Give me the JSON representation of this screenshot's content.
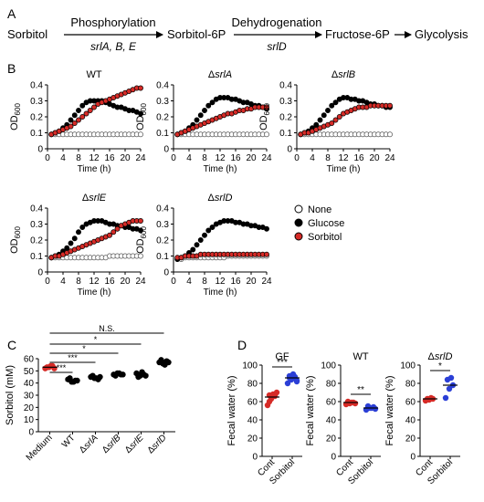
{
  "colors": {
    "none": "#ffffff",
    "glucose": "#000000",
    "sorbitol": "#d62b27",
    "sorbitol_blue": "#2b3fd6"
  },
  "panel_a": {
    "label": "A",
    "nodes": [
      "Sorbitol",
      "Sorbitol-6P",
      "Fructose-6P",
      "Glycolysis"
    ],
    "steps": [
      {
        "above": "Phosphorylation",
        "below": "srlA, B, E"
      },
      {
        "above": "Dehydrogenation",
        "below": "srlD"
      }
    ]
  },
  "panel_b": {
    "label": "B",
    "legend": [
      "None",
      "Glucose",
      "Sorbitol"
    ],
    "chart_data": [
      {
        "type": "line",
        "title": "WT",
        "xlabel": "Time (h)",
        "ylabel": "OD600",
        "xlim": [
          0,
          24
        ],
        "ylim": [
          0,
          0.4
        ],
        "xticks": [
          "0",
          "4",
          "8",
          "12",
          "16",
          "20",
          "24"
        ],
        "yticks": [
          "0",
          "0.1",
          "0.2",
          "0.3",
          "0.4"
        ],
        "x": [
          1,
          2,
          3,
          4,
          5,
          6,
          7,
          8,
          9,
          10,
          11,
          12,
          13,
          14,
          15,
          16,
          17,
          18,
          19,
          20,
          21,
          22,
          23,
          24
        ],
        "series": [
          {
            "name": "None",
            "values": [
              0.09,
              0.09,
              0.09,
              0.09,
              0.09,
              0.09,
              0.09,
              0.09,
              0.09,
              0.09,
              0.09,
              0.09,
              0.09,
              0.09,
              0.09,
              0.09,
              0.09,
              0.09,
              0.09,
              0.09,
              0.09,
              0.09,
              0.09,
              0.09
            ]
          },
          {
            "name": "Glucose",
            "values": [
              0.09,
              0.1,
              0.11,
              0.13,
              0.15,
              0.18,
              0.21,
              0.24,
              0.27,
              0.29,
              0.3,
              0.3,
              0.3,
              0.3,
              0.29,
              0.28,
              0.27,
              0.26,
              0.26,
              0.25,
              0.24,
              0.24,
              0.23,
              0.22
            ]
          },
          {
            "name": "Sorbitol",
            "values": [
              0.09,
              0.1,
              0.11,
              0.12,
              0.13,
              0.14,
              0.16,
              0.18,
              0.2,
              0.22,
              0.24,
              0.26,
              0.28,
              0.29,
              0.3,
              0.31,
              0.32,
              0.33,
              0.34,
              0.35,
              0.36,
              0.37,
              0.38,
              0.38
            ]
          }
        ]
      },
      {
        "type": "line",
        "title": "ΔsrlA",
        "xlabel": "Time (h)",
        "ylabel": "OD600",
        "xlim": [
          0,
          24
        ],
        "ylim": [
          0,
          0.4
        ],
        "xticks": [
          "0",
          "4",
          "8",
          "12",
          "16",
          "20",
          "24"
        ],
        "yticks": [
          "0",
          "0.1",
          "0.2",
          "0.3",
          "0.4"
        ],
        "x": [
          1,
          2,
          3,
          4,
          5,
          6,
          7,
          8,
          9,
          10,
          11,
          12,
          13,
          14,
          15,
          16,
          17,
          18,
          19,
          20,
          21,
          22,
          23,
          24
        ],
        "series": [
          {
            "name": "None",
            "values": [
              0.09,
              0.09,
              0.09,
              0.09,
              0.09,
              0.09,
              0.09,
              0.09,
              0.09,
              0.09,
              0.09,
              0.09,
              0.09,
              0.09,
              0.09,
              0.09,
              0.09,
              0.09,
              0.09,
              0.09,
              0.09,
              0.09,
              0.09,
              0.09
            ]
          },
          {
            "name": "Glucose",
            "values": [
              0.09,
              0.1,
              0.11,
              0.13,
              0.15,
              0.18,
              0.21,
              0.24,
              0.27,
              0.29,
              0.31,
              0.32,
              0.32,
              0.32,
              0.31,
              0.31,
              0.3,
              0.29,
              0.29,
              0.28,
              0.27,
              0.27,
              0.26,
              0.25
            ]
          },
          {
            "name": "Sorbitol",
            "values": [
              0.09,
              0.1,
              0.11,
              0.12,
              0.13,
              0.14,
              0.15,
              0.16,
              0.17,
              0.18,
              0.19,
              0.2,
              0.21,
              0.22,
              0.22,
              0.23,
              0.24,
              0.24,
              0.25,
              0.25,
              0.26,
              0.26,
              0.26,
              0.26
            ]
          }
        ]
      },
      {
        "type": "line",
        "title": "ΔsrlB",
        "xlabel": "Time (h)",
        "ylabel": "OD600",
        "xlim": [
          0,
          24
        ],
        "ylim": [
          0,
          0.4
        ],
        "xticks": [
          "0",
          "4",
          "8",
          "12",
          "16",
          "20",
          "24"
        ],
        "yticks": [
          "0",
          "0.1",
          "0.2",
          "0.3",
          "0.4"
        ],
        "x": [
          1,
          2,
          3,
          4,
          5,
          6,
          7,
          8,
          9,
          10,
          11,
          12,
          13,
          14,
          15,
          16,
          17,
          18,
          19,
          20,
          21,
          22,
          23,
          24
        ],
        "series": [
          {
            "name": "None",
            "values": [
              0.09,
              0.09,
              0.09,
              0.09,
              0.09,
              0.09,
              0.09,
              0.09,
              0.09,
              0.09,
              0.09,
              0.09,
              0.09,
              0.09,
              0.09,
              0.09,
              0.09,
              0.09,
              0.09,
              0.09,
              0.09,
              0.09,
              0.09,
              0.09
            ]
          },
          {
            "name": "Glucose",
            "values": [
              0.09,
              0.1,
              0.11,
              0.13,
              0.15,
              0.18,
              0.21,
              0.24,
              0.27,
              0.29,
              0.31,
              0.32,
              0.32,
              0.31,
              0.31,
              0.3,
              0.3,
              0.29,
              0.28,
              0.28,
              0.27,
              0.27,
              0.26,
              0.26
            ]
          },
          {
            "name": "Sorbitol",
            "values": [
              0.09,
              0.1,
              0.1,
              0.11,
              0.12,
              0.13,
              0.14,
              0.15,
              0.16,
              0.18,
              0.2,
              0.22,
              0.23,
              0.24,
              0.25,
              0.26,
              0.26,
              0.26,
              0.27,
              0.27,
              0.27,
              0.27,
              0.27,
              0.27
            ]
          }
        ]
      },
      {
        "type": "line",
        "title": "ΔsrlE",
        "xlabel": "Time (h)",
        "ylabel": "OD600",
        "xlim": [
          0,
          24
        ],
        "ylim": [
          0,
          0.4
        ],
        "xticks": [
          "0",
          "4",
          "8",
          "12",
          "16",
          "20",
          "24"
        ],
        "yticks": [
          "0",
          "0.1",
          "0.2",
          "0.3",
          "0.4"
        ],
        "x": [
          1,
          2,
          3,
          4,
          5,
          6,
          7,
          8,
          9,
          10,
          11,
          12,
          13,
          14,
          15,
          16,
          17,
          18,
          19,
          20,
          21,
          22,
          23,
          24
        ],
        "series": [
          {
            "name": "None",
            "values": [
              0.09,
              0.09,
              0.09,
              0.09,
              0.09,
              0.09,
              0.09,
              0.09,
              0.09,
              0.09,
              0.09,
              0.09,
              0.09,
              0.09,
              0.09,
              0.1,
              0.1,
              0.1,
              0.1,
              0.1,
              0.1,
              0.1,
              0.1,
              0.1
            ]
          },
          {
            "name": "Glucose",
            "values": [
              0.09,
              0.1,
              0.11,
              0.13,
              0.15,
              0.18,
              0.21,
              0.25,
              0.28,
              0.3,
              0.31,
              0.32,
              0.32,
              0.32,
              0.31,
              0.3,
              0.3,
              0.29,
              0.29,
              0.28,
              0.28,
              0.27,
              0.27,
              0.26
            ]
          },
          {
            "name": "Sorbitol",
            "values": [
              0.09,
              0.1,
              0.1,
              0.11,
              0.12,
              0.13,
              0.14,
              0.15,
              0.16,
              0.17,
              0.18,
              0.19,
              0.2,
              0.21,
              0.22,
              0.23,
              0.25,
              0.27,
              0.29,
              0.3,
              0.31,
              0.32,
              0.32,
              0.32
            ]
          }
        ]
      },
      {
        "type": "line",
        "title": "ΔsrlD",
        "xlabel": "Time (h)",
        "ylabel": "OD600",
        "xlim": [
          0,
          24
        ],
        "ylim": [
          0,
          0.4
        ],
        "xticks": [
          "0",
          "4",
          "8",
          "12",
          "16",
          "20",
          "24"
        ],
        "yticks": [
          "0",
          "0.1",
          "0.2",
          "0.3",
          "0.4"
        ],
        "x": [
          1,
          2,
          3,
          4,
          5,
          6,
          7,
          8,
          9,
          10,
          11,
          12,
          13,
          14,
          15,
          16,
          17,
          18,
          19,
          20,
          21,
          22,
          23,
          24
        ],
        "series": [
          {
            "name": "None",
            "values": [
              0.08,
              0.08,
              0.09,
              0.09,
              0.09,
              0.09,
              0.09,
              0.09,
              0.09,
              0.09,
              0.09,
              0.09,
              0.09,
              0.1,
              0.1,
              0.1,
              0.1,
              0.1,
              0.1,
              0.1,
              0.1,
              0.1,
              0.1,
              0.1
            ]
          },
          {
            "name": "Glucose",
            "values": [
              0.08,
              0.09,
              0.1,
              0.12,
              0.14,
              0.17,
              0.2,
              0.23,
              0.26,
              0.28,
              0.3,
              0.31,
              0.32,
              0.32,
              0.32,
              0.31,
              0.31,
              0.3,
              0.3,
              0.29,
              0.29,
              0.28,
              0.28,
              0.27
            ]
          },
          {
            "name": "Sorbitol",
            "values": [
              0.09,
              0.09,
              0.1,
              0.1,
              0.1,
              0.1,
              0.11,
              0.11,
              0.11,
              0.11,
              0.11,
              0.11,
              0.11,
              0.11,
              0.11,
              0.11,
              0.11,
              0.11,
              0.11,
              0.11,
              0.11,
              0.11,
              0.11,
              0.11
            ]
          }
        ]
      }
    ]
  },
  "panel_c": {
    "label": "C",
    "chart_data": {
      "type": "scatter",
      "ylabel": "Sorbitol (mM)",
      "ylim": [
        0,
        60
      ],
      "yticks": [
        "0",
        "10",
        "20",
        "30",
        "40",
        "50",
        "60"
      ],
      "categories": [
        "Medium",
        "WT",
        "ΔsrlA",
        "ΔsrlB",
        "ΔsrlE",
        "ΔsrlD"
      ],
      "series": [
        {
          "values": [
            [
              52,
              53,
              54,
              53,
              54,
              52
            ],
            [
              43,
              41,
              42,
              44,
              41,
              42
            ],
            [
              45,
              44,
              43,
              46,
              44,
              45
            ],
            [
              47,
              48,
              47,
              46,
              48,
              47
            ],
            [
              48,
              46,
              47,
              45,
              49,
              46
            ],
            [
              57,
              56,
              58,
              59,
              55,
              57
            ]
          ]
        }
      ],
      "means": [
        53,
        42,
        45,
        47,
        47,
        57
      ],
      "significance": [
        {
          "from": "Medium",
          "to": "WT",
          "label": "***"
        },
        {
          "from": "Medium",
          "to": "ΔsrlA",
          "label": "***"
        },
        {
          "from": "Medium",
          "to": "ΔsrlB",
          "label": "*"
        },
        {
          "from": "Medium",
          "to": "ΔsrlE",
          "label": "*"
        },
        {
          "from": "Medium",
          "to": "ΔsrlD",
          "label": "N.S."
        }
      ]
    }
  },
  "panel_d": {
    "label": "D",
    "chart_data": [
      {
        "type": "scatter",
        "title": "GF",
        "ylabel": "Fecal water (%)",
        "ylim": [
          0,
          100
        ],
        "yticks": [
          "0",
          "20",
          "40",
          "60",
          "80",
          "100"
        ],
        "categories": [
          "Cont",
          "Sorbitol"
        ],
        "series": [
          {
            "values": [
              [
                56,
                63,
                66,
                67,
                68,
                70,
                60
              ],
              [
                80,
                84,
                87,
                88,
                90,
                83,
                86,
                89,
                82
              ]
            ]
          }
        ],
        "means": [
          65,
          86
        ],
        "significance": [
          {
            "label": "***"
          }
        ]
      },
      {
        "type": "scatter",
        "title": "WT",
        "ylabel": "Fecal water (%)",
        "ylim": [
          0,
          100
        ],
        "yticks": [
          "0",
          "20",
          "40",
          "60",
          "80",
          "100"
        ],
        "categories": [
          "Cont",
          "Sorbitol"
        ],
        "series": [
          {
            "values": [
              [
                57,
                58,
                59,
                60,
                59,
                58
              ],
              [
                51,
                53,
                54,
                55,
                53,
                52
              ]
            ]
          }
        ],
        "means": [
          59,
          53
        ],
        "significance": [
          {
            "label": "**"
          }
        ]
      },
      {
        "type": "scatter",
        "title": "ΔsrlD",
        "ylabel": "Fecal water (%)",
        "ylim": [
          0,
          100
        ],
        "yticks": [
          "0",
          "20",
          "40",
          "60",
          "80",
          "100"
        ],
        "categories": [
          "Cont",
          "Sorbitol"
        ],
        "series": [
          {
            "values": [
              [
                61,
                62,
                63,
                63,
                64
              ],
              [
                64,
                74,
                78,
                84,
                86
              ]
            ]
          }
        ],
        "means": [
          63,
          78
        ],
        "significance": [
          {
            "label": "*"
          }
        ]
      }
    ]
  }
}
